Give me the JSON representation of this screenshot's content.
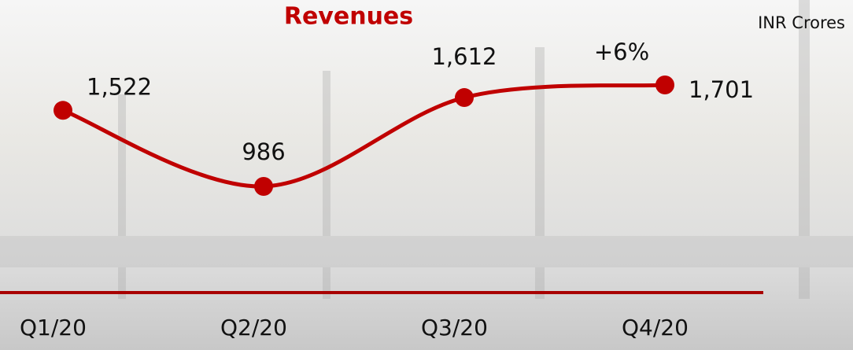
{
  "chart_data": {
    "type": "line",
    "title": "Revenues",
    "unit": "INR Crores",
    "annotation": "+6%",
    "categories": [
      "Q1/20",
      "Q2/20",
      "Q3/20",
      "Q4/20"
    ],
    "values": [
      1522,
      986,
      1612,
      1701
    ],
    "value_labels": [
      "1,522",
      "986",
      "1,612",
      "1,701"
    ],
    "color": "#c00000"
  }
}
